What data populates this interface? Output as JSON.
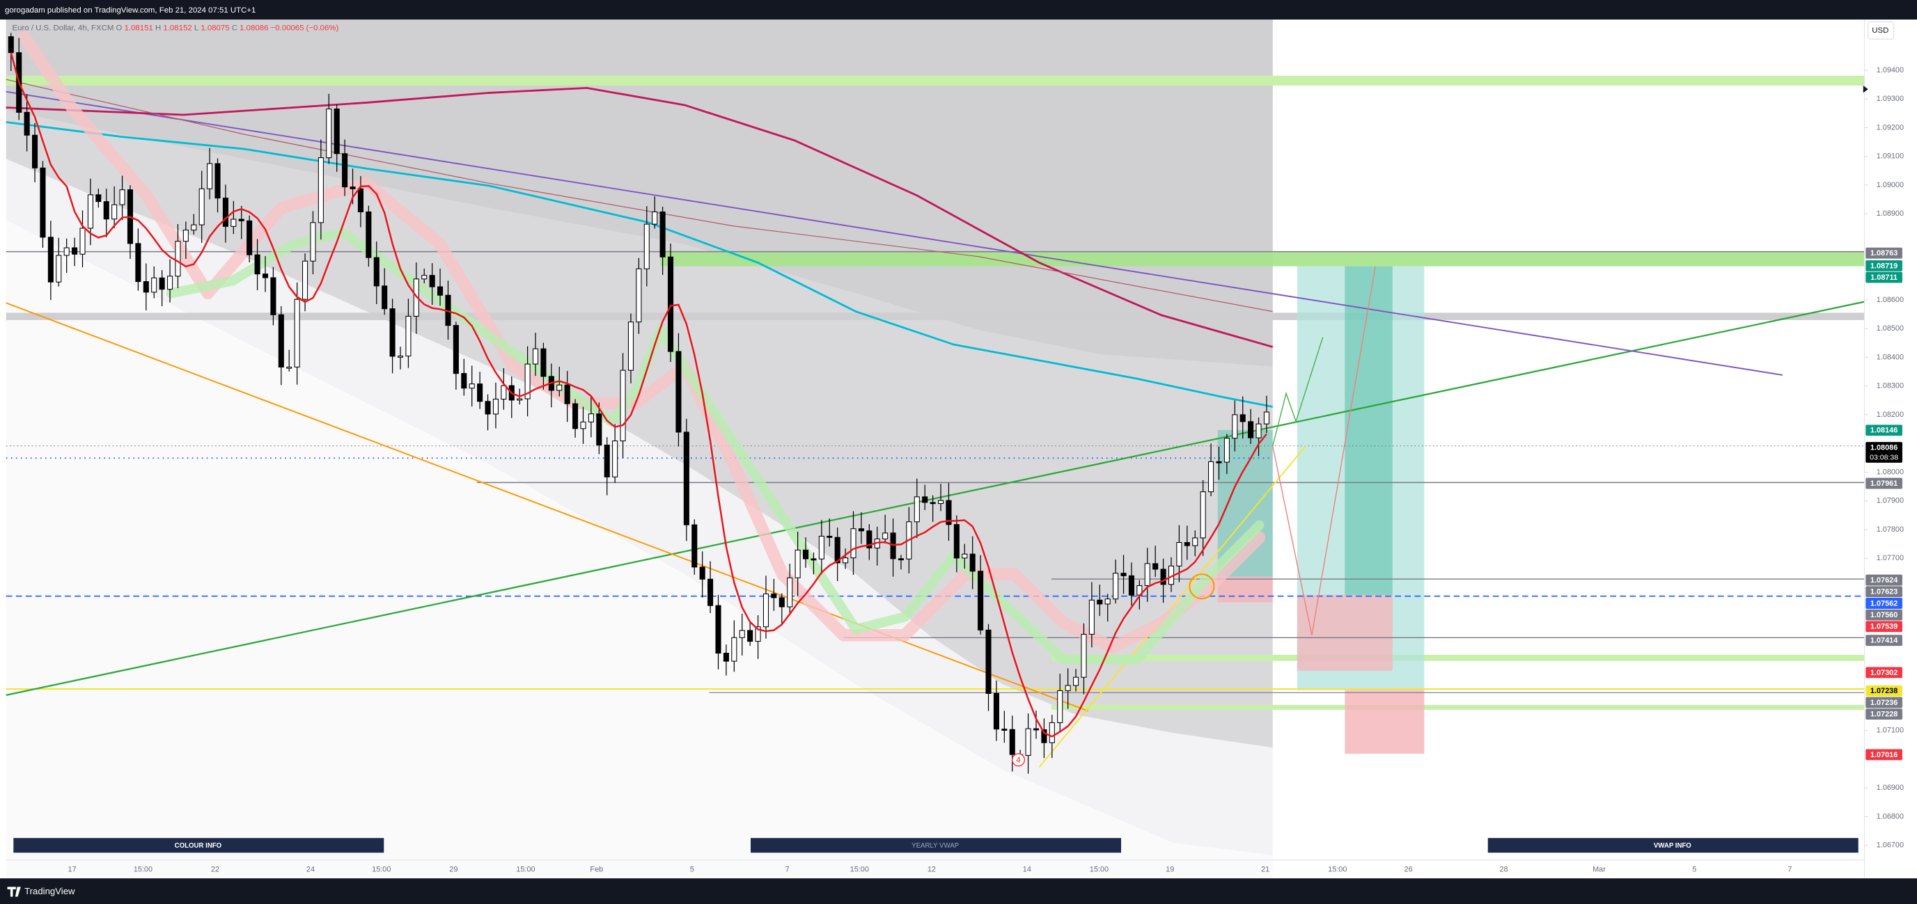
{
  "header": {
    "published": "gorogadam published on TradingView.com, Feb 21, 2024 07:51 UTC+1",
    "symbol": "Euro / U.S. Dollar, 4h, FXCM",
    "ohlc": [
      {
        "label": "O",
        "value": 1.08151
      },
      {
        "label": "H",
        "value": 1.08152
      },
      {
        "label": "L",
        "value": 1.08075
      },
      {
        "label": "C",
        "value": 1.08086
      }
    ],
    "change": "−0.00065 (−0.06%)"
  },
  "currency": "USD",
  "price_axis": {
    "ticks": [
      {
        "value": 1.094,
        "label": "1.09400"
      },
      {
        "value": 1.093,
        "label": "1.09300"
      },
      {
        "value": 1.092,
        "label": "1.09200"
      },
      {
        "value": 1.091,
        "label": "1.09100"
      },
      {
        "value": 1.09,
        "label": "1.09000"
      },
      {
        "value": 1.089,
        "label": "1.08900"
      },
      {
        "value": 1.086,
        "label": "1.08600"
      },
      {
        "value": 1.085,
        "label": "1.08500"
      },
      {
        "value": 1.084,
        "label": "1.08400"
      },
      {
        "value": 1.083,
        "label": "1.08300"
      },
      {
        "value": 1.082,
        "label": "1.08200"
      },
      {
        "value": 1.08,
        "label": "1.08000"
      },
      {
        "value": 1.079,
        "label": "1.07900"
      },
      {
        "value": 1.078,
        "label": "1.07800"
      },
      {
        "value": 1.077,
        "label": "1.07700"
      },
      {
        "value": 1.071,
        "label": "1.07100"
      },
      {
        "value": 1.069,
        "label": "1.06900"
      },
      {
        "value": 1.068,
        "label": "1.06800"
      },
      {
        "value": 1.067,
        "label": "1.06700"
      }
    ],
    "tags": [
      {
        "price": 1.08763,
        "color": "#787b86"
      },
      {
        "price": 1.08719,
        "color": "#089981"
      },
      {
        "price": 1.08711,
        "color": "#089981"
      },
      {
        "price": 1.08146,
        "color": "#089981"
      },
      {
        "price": 1.08086,
        "color": "#000000",
        "countdown": "03:08:38"
      },
      {
        "price": 1.07961,
        "color": "#787b86"
      },
      {
        "price": 1.07624,
        "color": "#787b86"
      },
      {
        "price": 1.07623,
        "color": "#787b86"
      },
      {
        "price": 1.07562,
        "color": "#2962ff"
      },
      {
        "price": 1.0756,
        "label": "1.07560",
        "color": "#787b86"
      },
      {
        "price": 1.07539,
        "color": "#f23645"
      },
      {
        "price": 1.07414,
        "color": "#787b86"
      },
      {
        "price": 1.07302,
        "color": "#f23645"
      },
      {
        "price": 1.07238,
        "color": "#f5e533",
        "text_color": "#000000"
      },
      {
        "price": 1.07236,
        "color": "#787b86"
      },
      {
        "price": 1.07228,
        "color": "#787b86"
      },
      {
        "price": 1.07016,
        "color": "#f23645"
      }
    ]
  },
  "time_axis": [
    "17",
    "15:00",
    "22",
    "24",
    "15:00",
    "29",
    "15:00",
    "Feb",
    "5",
    "7",
    "15:00",
    "12",
    "14",
    "15:00",
    "19",
    "21",
    "15:00",
    "26",
    "28",
    "Mar",
    "5",
    "7"
  ],
  "panels": [
    "COLOUR INFO",
    "YEARLY VWAP",
    "VWAP INFO"
  ],
  "marker": "4",
  "footer": "TradingView"
}
